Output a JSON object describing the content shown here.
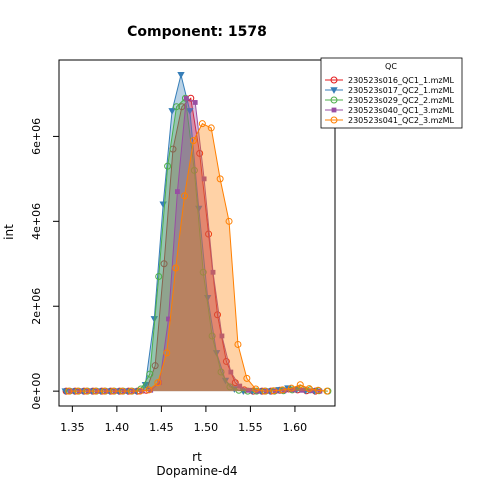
{
  "chart_data": {
    "type": "area",
    "title": "Component: 1578",
    "xlabel": "rt",
    "xlabel_sub": "Dopamine-d4",
    "ylabel": "int",
    "xlim": [
      1.335,
      1.645
    ],
    "ylim": [
      -350000,
      7800000
    ],
    "x_ticks": [
      1.35,
      1.4,
      1.45,
      1.5,
      1.55,
      1.6
    ],
    "x_tick_labels": [
      "1.35",
      "1.40",
      "1.45",
      "1.50",
      "1.55",
      "1.60"
    ],
    "y_ticks": [
      0,
      2000000,
      4000000,
      6000000
    ],
    "y_tick_labels": [
      "0e+00",
      "2e+06",
      "4e+06",
      "6e+06"
    ],
    "grid": false,
    "legend": {
      "title": "QC",
      "position": "top-right",
      "entries": [
        "230523s016_QC1_1.mzML",
        "230523s017_QC2_1.mzML",
        "230523s029_QC2_2.mzML",
        "230523s040_QC1_3.mzML",
        "230523s041_QC2_3.mzML"
      ]
    },
    "series": [
      {
        "name": "230523s016_QC1_1.mzML",
        "color": "#E41A1C",
        "marker": "circle",
        "x": [
          1.343,
          1.353,
          1.363,
          1.373,
          1.383,
          1.393,
          1.403,
          1.413,
          1.423,
          1.433,
          1.443,
          1.453,
          1.463,
          1.473,
          1.483,
          1.493,
          1.503,
          1.513,
          1.523,
          1.533,
          1.543,
          1.553,
          1.563,
          1.573,
          1.583,
          1.593,
          1.603,
          1.613,
          1.623
        ],
        "y": [
          0,
          0,
          0,
          0,
          0,
          0,
          0,
          0,
          0,
          20000,
          600000,
          3000000,
          5700000,
          6700000,
          6900000,
          5600000,
          3700000,
          1800000,
          700000,
          200000,
          30000,
          0,
          0,
          0,
          20000,
          50000,
          30000,
          10000,
          0
        ]
      },
      {
        "name": "230523s017_QC2_1.mzML",
        "color": "#377EB8",
        "marker": "triangle",
        "x": [
          1.342,
          1.352,
          1.362,
          1.372,
          1.382,
          1.392,
          1.402,
          1.412,
          1.422,
          1.432,
          1.442,
          1.452,
          1.462,
          1.472,
          1.482,
          1.492,
          1.502,
          1.512,
          1.522,
          1.532,
          1.542,
          1.552,
          1.562,
          1.572,
          1.582,
          1.592,
          1.602,
          1.612,
          1.622
        ],
        "y": [
          0,
          0,
          0,
          0,
          0,
          0,
          0,
          0,
          0,
          150000,
          1700000,
          4400000,
          6600000,
          7450000,
          6600000,
          4300000,
          2200000,
          900000,
          250000,
          50000,
          0,
          0,
          0,
          0,
          30000,
          70000,
          40000,
          10000,
          0
        ]
      },
      {
        "name": "230523s029_QC2_2.mzML",
        "color": "#4DAF4A",
        "marker": "circle",
        "x": [
          1.347,
          1.357,
          1.367,
          1.377,
          1.387,
          1.397,
          1.407,
          1.417,
          1.427,
          1.437,
          1.447,
          1.457,
          1.467,
          1.477,
          1.487,
          1.497,
          1.507,
          1.517,
          1.527,
          1.537,
          1.547,
          1.557,
          1.567,
          1.577,
          1.587,
          1.597,
          1.607,
          1.617,
          1.627,
          1.637
        ],
        "y": [
          0,
          0,
          0,
          0,
          0,
          0,
          0,
          0,
          50000,
          400000,
          2700000,
          5300000,
          6700000,
          6900000,
          5200000,
          2800000,
          1300000,
          450000,
          100000,
          20000,
          0,
          0,
          0,
          0,
          10000,
          30000,
          60000,
          30000,
          10000,
          0
        ]
      },
      {
        "name": "230523s040_QC1_3.mzML",
        "color": "#984EA3",
        "marker": "square",
        "x": [
          1.348,
          1.358,
          1.368,
          1.378,
          1.388,
          1.398,
          1.408,
          1.418,
          1.428,
          1.438,
          1.448,
          1.458,
          1.468,
          1.478,
          1.488,
          1.498,
          1.508,
          1.518,
          1.528,
          1.538,
          1.548,
          1.558,
          1.568,
          1.578,
          1.588,
          1.598,
          1.608,
          1.618,
          1.628
        ],
        "y": [
          0,
          0,
          0,
          0,
          0,
          0,
          0,
          0,
          0,
          20000,
          200000,
          1700000,
          4700000,
          6900000,
          6800000,
          5000000,
          2800000,
          1300000,
          450000,
          120000,
          20000,
          0,
          0,
          0,
          10000,
          30000,
          20000,
          10000,
          0
        ]
      },
      {
        "name": "230523s041_QC2_3.mzML",
        "color": "#FF7F00",
        "marker": "circle",
        "x": [
          1.346,
          1.356,
          1.366,
          1.376,
          1.386,
          1.396,
          1.406,
          1.416,
          1.426,
          1.436,
          1.446,
          1.456,
          1.466,
          1.476,
          1.486,
          1.496,
          1.506,
          1.516,
          1.526,
          1.536,
          1.546,
          1.556,
          1.566,
          1.576,
          1.586,
          1.596,
          1.606,
          1.616,
          1.626,
          1.636
        ],
        "y": [
          0,
          0,
          0,
          0,
          0,
          0,
          0,
          0,
          0,
          30000,
          200000,
          900000,
          2900000,
          4600000,
          5900000,
          6300000,
          6200000,
          5000000,
          4000000,
          1100000,
          300000,
          50000,
          0,
          10000,
          30000,
          70000,
          150000,
          60000,
          20000,
          0
        ]
      }
    ]
  }
}
